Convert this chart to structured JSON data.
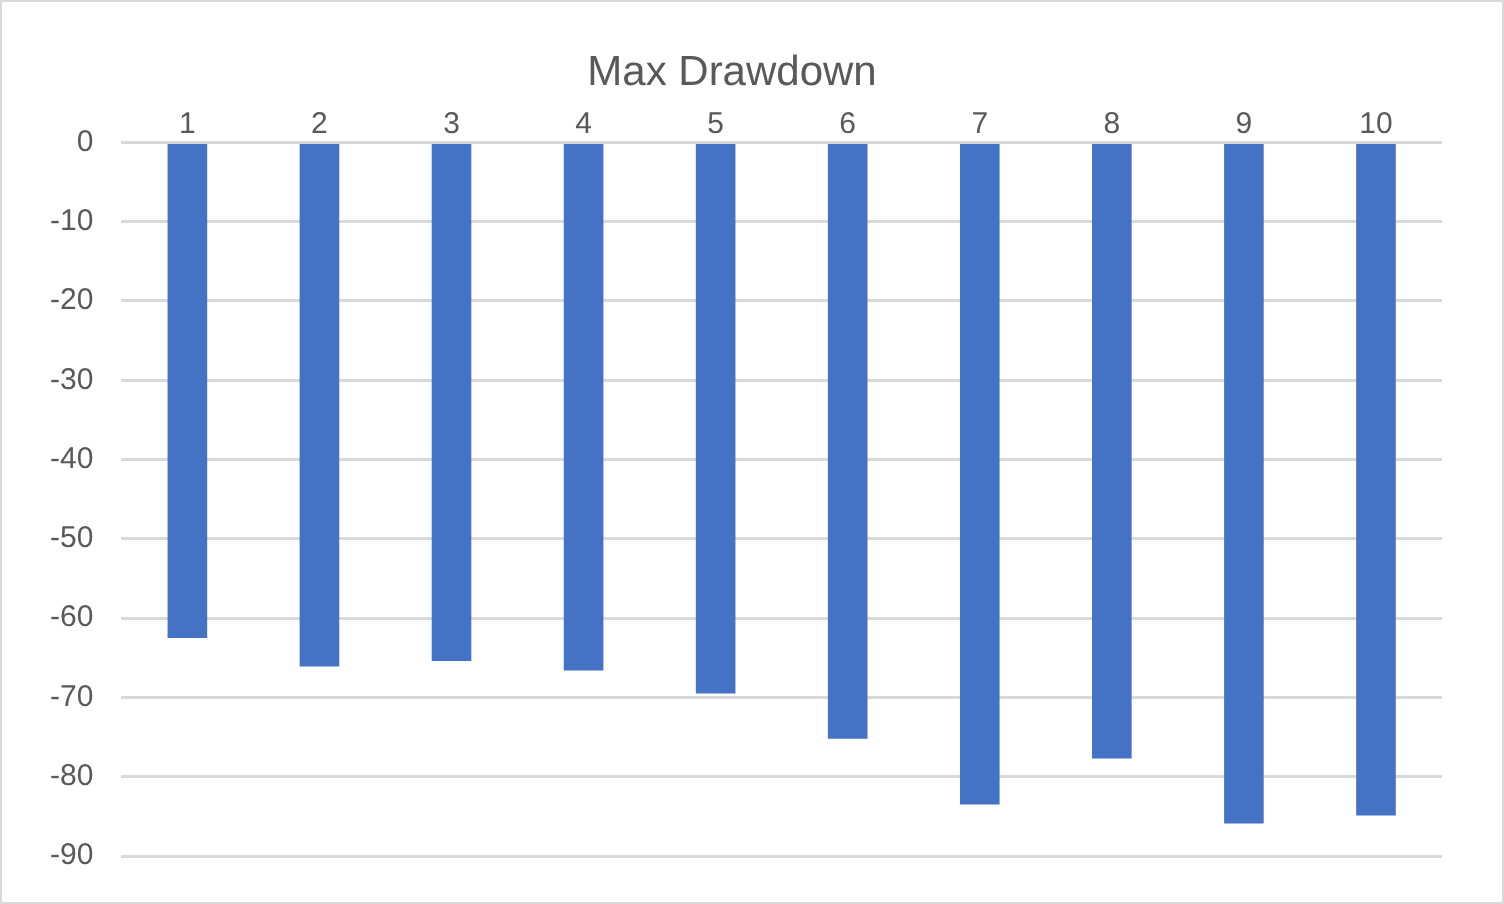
{
  "chart_data": {
    "type": "bar",
    "title": "Max Drawdown",
    "categories": [
      "1",
      "2",
      "3",
      "4",
      "5",
      "6",
      "7",
      "8",
      "9",
      "10"
    ],
    "values": [
      -62.5,
      -66.1,
      -65.4,
      -66.6,
      -69.5,
      -75.2,
      -83.5,
      -77.7,
      -85.9,
      -84.9
    ],
    "color": "#4472c4",
    "ylim": [
      -90,
      0
    ],
    "yticks": [
      0,
      -10,
      -20,
      -30,
      -40,
      -50,
      -60,
      -70,
      -80,
      -90
    ],
    "grid": "y"
  }
}
